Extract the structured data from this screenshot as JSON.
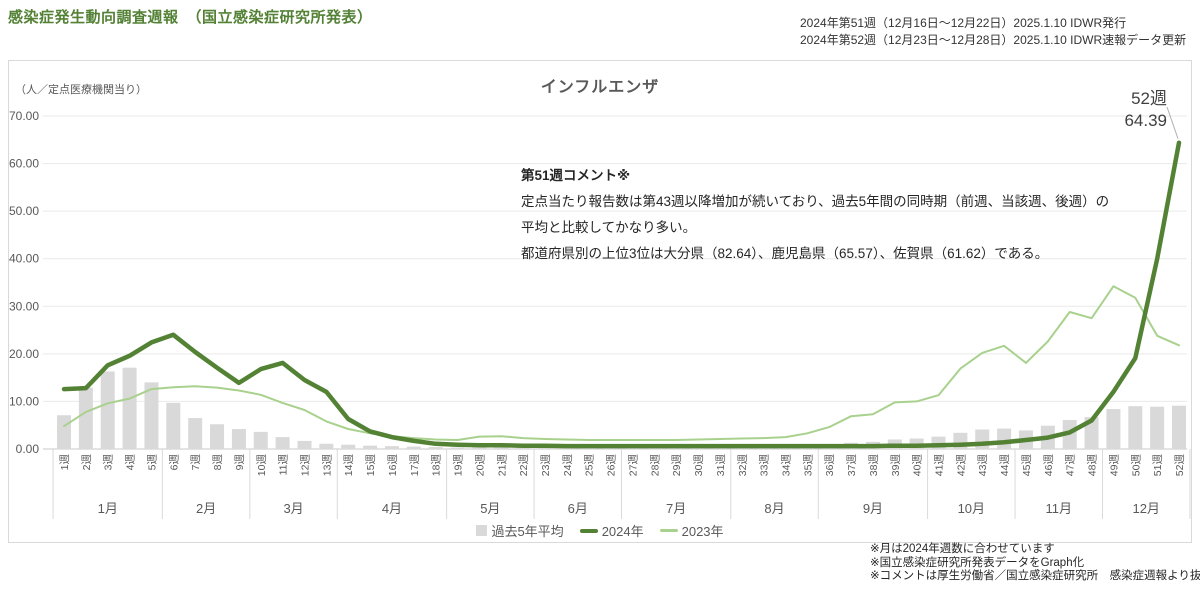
{
  "header": {
    "title": "感染症発生動向調査週報　（国立感染症研究所発表）",
    "issue_lines": [
      "2024年第51週（12月16日〜12月22日）2025.1.10 IDWR発行",
      "2024年第52週（12月23日〜12月28日）2025.1.10 IDWR速報データ更新"
    ]
  },
  "comment": {
    "heading": "第51週コメント※",
    "lines": [
      "定点当たり報告数は第43週以降増加が続いており、過去5年間の同時期（前週、当該週、後週）の",
      "平均と比較してかなり多い。",
      "都道府県別の上位3位は大分県（82.64）、鹿児島県（65.57）、佐賀県（61.62）である。"
    ]
  },
  "footnotes": [
    "※月は2024年週数に合わせています",
    "※国立感染症研究所発表データをGraph化",
    "※コメントは厚生労働省／国立感染症研究所　感染症週報より抜粋"
  ],
  "colors": {
    "title_green": "#538135",
    "grid": "#e9e9e9",
    "axis": "#c8c8c8",
    "divider": "#d9d9d9",
    "axis_text": "#595959",
    "leader_line": "#b0b0b0"
  },
  "chart_data": {
    "type": "bar+line",
    "title": "インフルエンザ",
    "ylabel": "（人／定点医療機関当り）",
    "ylim": [
      0,
      70
    ],
    "ytick_step": 10,
    "yticks": [
      "0.00",
      "10.00",
      "20.00",
      "30.00",
      "40.00",
      "50.00",
      "60.00",
      "70.00"
    ],
    "grid": true,
    "legend_position": "bottom",
    "annotation": {
      "label": "52週",
      "value": "64.39"
    },
    "categories": [
      "1週",
      "2週",
      "3週",
      "4週",
      "5週",
      "6週",
      "7週",
      "8週",
      "9週",
      "10週",
      "11週",
      "12週",
      "13週",
      "14週",
      "15週",
      "16週",
      "17週",
      "18週",
      "19週",
      "20週",
      "21週",
      "22週",
      "23週",
      "24週",
      "25週",
      "26週",
      "27週",
      "28週",
      "29週",
      "30週",
      "31週",
      "32週",
      "33週",
      "34週",
      "35週",
      "36週",
      "37週",
      "38週",
      "39週",
      "40週",
      "41週",
      "42週",
      "43週",
      "44週",
      "45週",
      "46週",
      "47週",
      "48週",
      "49週",
      "50週",
      "51週",
      "52週"
    ],
    "months": [
      {
        "label": "1月",
        "from": 1,
        "to": 5
      },
      {
        "label": "2月",
        "from": 6,
        "to": 9
      },
      {
        "label": "3月",
        "from": 10,
        "to": 13
      },
      {
        "label": "4月",
        "from": 14,
        "to": 18
      },
      {
        "label": "5月",
        "from": 19,
        "to": 22
      },
      {
        "label": "6月",
        "from": 23,
        "to": 26
      },
      {
        "label": "7月",
        "from": 27,
        "to": 31
      },
      {
        "label": "8月",
        "from": 32,
        "to": 35
      },
      {
        "label": "9月",
        "from": 36,
        "to": 40
      },
      {
        "label": "10月",
        "from": 41,
        "to": 44
      },
      {
        "label": "11月",
        "from": 45,
        "to": 48
      },
      {
        "label": "12月",
        "from": 49,
        "to": 52
      }
    ],
    "series": [
      {
        "name": "過去5年平均",
        "type": "bar",
        "color": "#d9d9d9",
        "values": [
          7.1,
          12.9,
          16.3,
          17.1,
          14.0,
          9.7,
          6.5,
          5.2,
          4.2,
          3.6,
          2.5,
          1.7,
          1.1,
          0.9,
          0.7,
          0.6,
          0.5,
          0.4,
          0.3,
          0.3,
          0.3,
          0.3,
          0.2,
          0.2,
          0.2,
          0.2,
          0.2,
          0.2,
          0.2,
          0.2,
          0.2,
          0.3,
          0.3,
          0.3,
          0.5,
          1.0,
          1.3,
          1.5,
          2.0,
          2.2,
          2.6,
          3.4,
          4.1,
          4.3,
          3.9,
          4.9,
          6.1,
          6.7,
          8.4,
          9.0,
          8.9,
          9.1
        ]
      },
      {
        "name": "2024年",
        "type": "line",
        "color": "#548235",
        "width": 4.5,
        "values": [
          12.6,
          12.8,
          17.6,
          19.6,
          22.4,
          24.0,
          20.4,
          17.1,
          13.9,
          16.8,
          18.1,
          14.5,
          12.0,
          6.3,
          3.7,
          2.5,
          1.7,
          1.1,
          0.9,
          0.8,
          0.8,
          0.7,
          0.7,
          0.6,
          0.6,
          0.6,
          0.6,
          0.6,
          0.6,
          0.6,
          0.6,
          0.6,
          0.6,
          0.6,
          0.6,
          0.6,
          0.6,
          0.6,
          0.7,
          0.7,
          0.8,
          0.9,
          1.1,
          1.4,
          1.9,
          2.4,
          3.5,
          6.0,
          12.0,
          19.1,
          40.0,
          64.39
        ]
      },
      {
        "name": "2023年",
        "type": "line",
        "color": "#a9d18e",
        "width": 2,
        "values": [
          4.8,
          7.8,
          9.6,
          10.6,
          12.6,
          13.0,
          13.2,
          12.9,
          12.3,
          11.4,
          9.7,
          8.2,
          5.8,
          4.2,
          3.3,
          2.7,
          2.3,
          2.0,
          1.9,
          2.6,
          2.7,
          2.3,
          2.1,
          2.0,
          1.9,
          1.9,
          1.9,
          1.9,
          1.9,
          2.0,
          2.1,
          2.2,
          2.3,
          2.5,
          3.3,
          4.6,
          6.9,
          7.3,
          9.8,
          10.0,
          11.3,
          16.9,
          20.2,
          21.7,
          18.1,
          22.6,
          28.8,
          27.5,
          34.2,
          31.8,
          23.8,
          21.8
        ]
      }
    ]
  }
}
